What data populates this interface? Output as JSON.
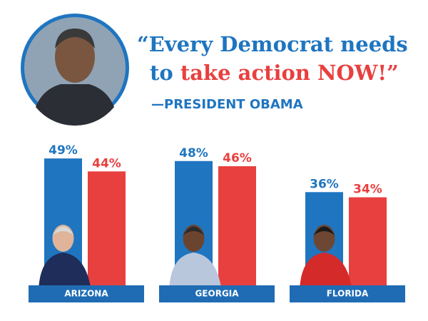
{
  "header": {
    "quote_line1": "“Every Democrat needs",
    "quote_line2_start": "to ",
    "quote_line2_emphasis": "take action NOW!”",
    "attribution": "—PRESIDENT OBAMA"
  },
  "chart_data": {
    "type": "bar",
    "categories": [
      "ARIZONA",
      "GEORGIA",
      "FLORIDA"
    ],
    "series": [
      {
        "color": "#1f75c0",
        "values": [
          49,
          48,
          36
        ],
        "value_labels": [
          "49%",
          "48%",
          "36%"
        ]
      },
      {
        "color": "#e8403f",
        "values": [
          44,
          46,
          34
        ],
        "value_labels": [
          "44%",
          "46%",
          "34%"
        ]
      }
    ]
  }
}
